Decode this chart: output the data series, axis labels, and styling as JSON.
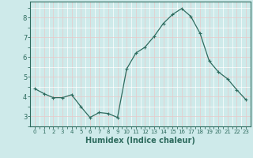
{
  "x": [
    0,
    1,
    2,
    3,
    4,
    5,
    6,
    7,
    8,
    9,
    10,
    11,
    12,
    13,
    14,
    15,
    16,
    17,
    18,
    19,
    20,
    21,
    22,
    23
  ],
  "y": [
    4.4,
    4.15,
    3.95,
    3.95,
    4.1,
    3.5,
    2.95,
    3.2,
    3.15,
    2.95,
    5.4,
    6.2,
    6.5,
    7.05,
    7.7,
    8.15,
    8.45,
    8.05,
    7.2,
    5.8,
    5.25,
    4.9,
    4.35,
    3.85
  ],
  "line_color": "#2e6b5e",
  "marker": "+",
  "marker_size": 3,
  "marker_lw": 0.8,
  "bg_color": "#ceeaea",
  "grid_major_color": "#e8c8c8",
  "grid_minor_color": "#ffffff",
  "xlabel": "Humidex (Indice chaleur)",
  "xlabel_fontsize": 7,
  "tick_color": "#2e6b5e",
  "axis_color": "#2e6b5e",
  "xlim": [
    -0.5,
    23.5
  ],
  "ylim": [
    2.5,
    8.8
  ],
  "yticks": [
    3,
    4,
    5,
    6,
    7,
    8
  ],
  "xticks": [
    0,
    1,
    2,
    3,
    4,
    5,
    6,
    7,
    8,
    9,
    10,
    11,
    12,
    13,
    14,
    15,
    16,
    17,
    18,
    19,
    20,
    21,
    22,
    23
  ],
  "xtick_labels": [
    "0",
    "1",
    "2",
    "3",
    "4",
    "5",
    "6",
    "7",
    "8",
    "9",
    "10",
    "11",
    "12",
    "13",
    "14",
    "15",
    "16",
    "17",
    "18",
    "19",
    "20",
    "21",
    "22",
    "23"
  ]
}
